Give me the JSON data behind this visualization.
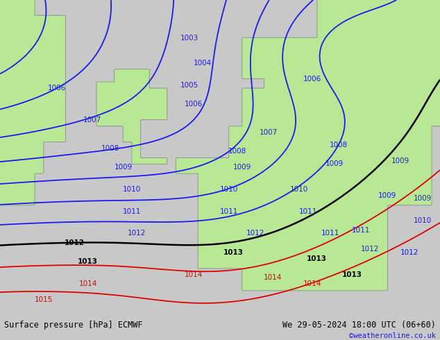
{
  "title_left": "Surface pressure [hPa] ECMWF",
  "title_right": "We 29-05-2024 18:00 UTC (06+60)",
  "credit": "©weatheronline.co.uk",
  "figsize": [
    6.34,
    4.9
  ],
  "dpi": 100,
  "background_color": "#c8c8c8",
  "land_color": "#b8e896",
  "sea_color": "#d8d8d8",
  "blue_contour_color": "#1a1aee",
  "black_contour_color": "#000000",
  "red_contour_color": "#dd0000",
  "footer_bg": "#c8c8c8",
  "footer_text_color": "#000000",
  "credit_color": "#1a1aee",
  "bottom_bar_height": 0.072
}
